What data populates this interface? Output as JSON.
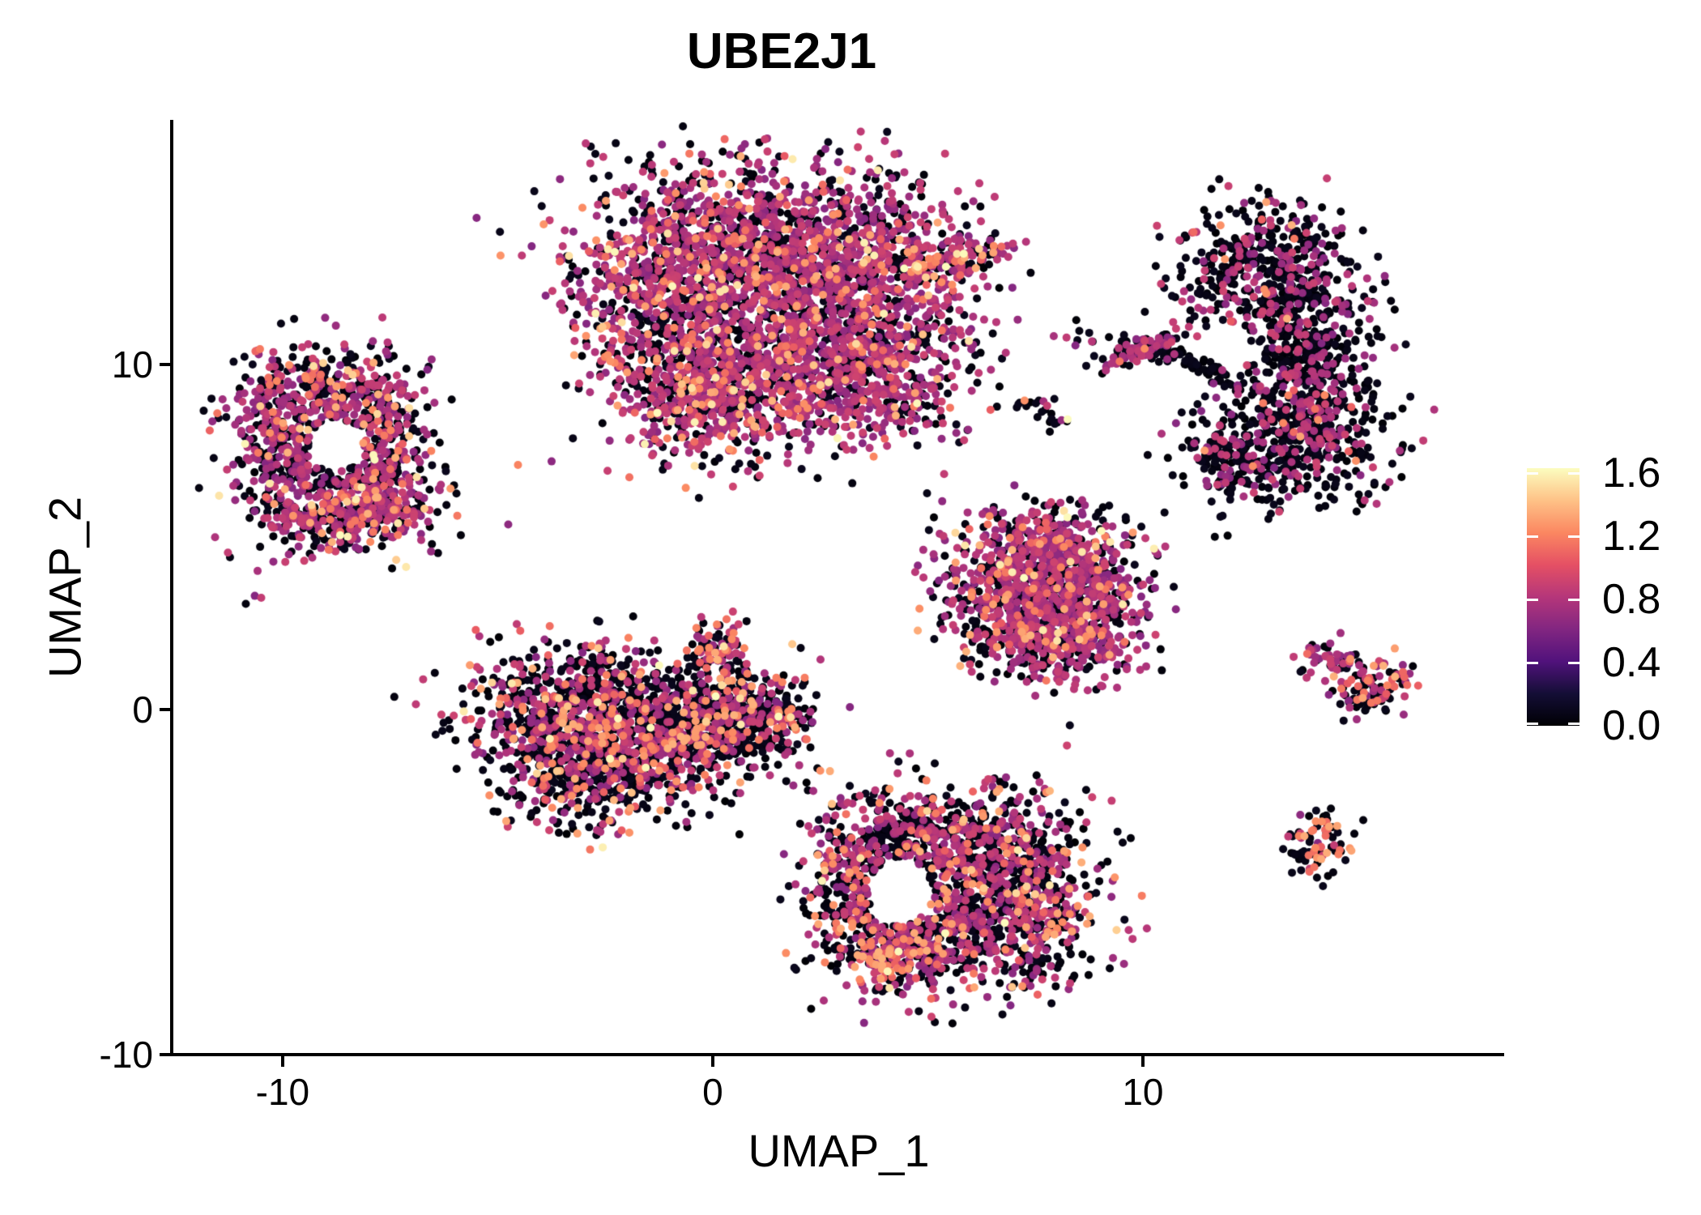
{
  "chart_data": {
    "type": "scatter",
    "title": "UBE2J1",
    "xlabel": "UMAP_1",
    "ylabel": "UMAP_2",
    "grid": false,
    "x_axis": {
      "ticks": [
        -10,
        0,
        10
      ],
      "tick_labels": [
        "-10",
        "0",
        "10"
      ],
      "range": [
        -12.54,
        18.4
      ]
    },
    "y_axis": {
      "ticks": [
        -10,
        0,
        10
      ],
      "tick_labels": [
        "-10",
        "0",
        "10"
      ],
      "range": [
        -10.0,
        17.09
      ]
    },
    "legend": {
      "position": "right",
      "vmin": 0.0,
      "vmax": 1.63,
      "ticks": [
        0.0,
        0.4,
        0.8,
        1.2,
        1.6
      ],
      "tick_labels": [
        "0.0",
        "0.4",
        "0.8",
        "1.2",
        "1.6"
      ],
      "colormap": "magma",
      "colormap_stops": [
        [
          0.0,
          "#000004"
        ],
        [
          0.125,
          "#140e36"
        ],
        [
          0.25,
          "#51127c"
        ],
        [
          0.375,
          "#822681"
        ],
        [
          0.5,
          "#b5367a"
        ],
        [
          0.625,
          "#e55064"
        ],
        [
          0.75,
          "#fb8761"
        ],
        [
          0.875,
          "#fec287"
        ],
        [
          1.0,
          "#fcfdbf"
        ]
      ]
    },
    "point_radius_px": 5,
    "value_bands": {
      "zero": [
        0.0,
        0.1
      ],
      "mid": [
        0.62,
        0.92
      ],
      "high": [
        1.05,
        1.38
      ],
      "peak": [
        1.42,
        1.63
      ]
    },
    "clusters": [
      {
        "name": "top-center-large",
        "weights": {
          "zero": 0.34,
          "mid": 0.555,
          "high": 0.09,
          "peak": 0.015
        },
        "blobs": [
          {
            "x": 0.38,
            "y": 13.52,
            "sx": 1.79,
            "sy": 1.29,
            "n": 950
          },
          {
            "x": 3.2,
            "y": 12.82,
            "sx": 1.51,
            "sy": 1.29,
            "n": 800
          },
          {
            "x": -1.13,
            "y": 11.64,
            "sx": 1.13,
            "sy": 1.41,
            "n": 500
          },
          {
            "x": 1.51,
            "y": 10.0,
            "sx": 1.69,
            "sy": 1.29,
            "n": 850
          },
          {
            "x": 3.95,
            "y": 9.77,
            "sx": 1.13,
            "sy": 1.06,
            "n": 400
          },
          {
            "x": -0.38,
            "y": 8.83,
            "sx": 0.94,
            "sy": 0.82,
            "n": 300
          },
          {
            "x": 5.08,
            "y": 12.82,
            "sx": 0.66,
            "sy": 0.28,
            "n": 90,
            "tilt": 0.35,
            "weights": {
              "zero": 0.3,
              "mid": 0.45,
              "high": 0.2,
              "peak": 0.05
            }
          },
          {
            "x": 6.12,
            "y": 13.17,
            "sx": 0.38,
            "sy": 0.23,
            "n": 50,
            "tilt": 0.35,
            "weights": {
              "zero": 0.3,
              "mid": 0.45,
              "high": 0.2,
              "peak": 0.05
            }
          }
        ]
      },
      {
        "name": "top-right-crescent",
        "weights": {
          "zero": 0.73,
          "mid": 0.25,
          "high": 0.02
        },
        "holes": [
          {
            "x": 11.9,
            "y": 10.3,
            "rx": 0.55,
            "ry": 0.95
          }
        ],
        "blobs": [
          {
            "x": 12.81,
            "y": 12.82,
            "sx": 1.04,
            "sy": 0.94,
            "n": 430
          },
          {
            "x": 13.79,
            "y": 10.23,
            "sx": 0.85,
            "sy": 1.41,
            "n": 480
          },
          {
            "x": 13.41,
            "y": 7.77,
            "sx": 1.04,
            "sy": 0.99,
            "n": 440
          },
          {
            "x": 11.96,
            "y": 7.3,
            "sx": 0.53,
            "sy": 0.59,
            "n": 110
          }
        ]
      },
      {
        "name": "small-streak-right",
        "weights": {
          "zero": 0.3,
          "mid": 0.66,
          "high": 0.04
        },
        "blobs": [
          {
            "x": 10.02,
            "y": 10.47,
            "sx": 0.45,
            "sy": 0.16,
            "n": 85,
            "tilt": 0.45
          },
          {
            "x": 11.11,
            "y": 10.05,
            "sx": 0.75,
            "sy": 0.14,
            "n": 75,
            "tilt": -0.5,
            "weights": {
              "zero": 0.95,
              "mid": 0.05
            }
          }
        ]
      },
      {
        "name": "tiny-island-a",
        "weights": {
          "zero": 0.65,
          "mid": 0.35
        },
        "blobs": [
          {
            "x": 8.53,
            "y": 10.77,
            "sx": 0.22,
            "sy": 0.16,
            "n": 9
          }
        ]
      },
      {
        "name": "tiny-island-b",
        "weights": {
          "zero": 0.82,
          "mid": 0.18
        },
        "blobs": [
          {
            "x": 7.29,
            "y": 8.9,
            "sx": 0.35,
            "sy": 0.16,
            "n": 11
          }
        ]
      },
      {
        "name": "tiny-island-c",
        "weights": {
          "zero": 0.62,
          "mid": 0.23,
          "peak": 0.15
        },
        "blobs": [
          {
            "x": 7.91,
            "y": 8.36,
            "sx": 0.22,
            "sy": 0.18,
            "n": 13
          }
        ]
      },
      {
        "name": "left-ring",
        "weights": {
          "zero": 0.45,
          "mid": 0.44,
          "high": 0.095,
          "peak": 0.015
        },
        "holes": [
          {
            "x": -8.76,
            "y": 7.7,
            "rx": 0.62,
            "ry": 0.72
          }
        ],
        "blobs": [
          {
            "x": -9.13,
            "y": 9.06,
            "sx": 1.13,
            "sy": 0.75,
            "n": 360
          },
          {
            "x": -9.89,
            "y": 7.3,
            "sx": 0.66,
            "sy": 1.13,
            "n": 290
          },
          {
            "x": -8.0,
            "y": 6.01,
            "sx": 0.94,
            "sy": 0.7,
            "n": 300
          },
          {
            "x": -7.62,
            "y": 7.7,
            "sx": 0.5,
            "sy": 0.99,
            "n": 250
          },
          {
            "x": -8.81,
            "y": 5.42,
            "sx": 0.85,
            "sy": 0.47,
            "n": 160
          }
        ]
      },
      {
        "name": "left-lone-dot",
        "weights": {
          "zero": 0.4,
          "mid": 0.6
        },
        "blobs": [
          {
            "x": -10.79,
            "y": 3.12,
            "sx": 0.1,
            "sy": 0.1,
            "n": 3
          }
        ]
      },
      {
        "name": "mid-right-triangle",
        "weights": {
          "zero": 0.36,
          "mid": 0.545,
          "high": 0.08,
          "peak": 0.015
        },
        "blobs": [
          {
            "x": 7.72,
            "y": 4.6,
            "sx": 1.09,
            "sy": 0.7,
            "n": 390
          },
          {
            "x": 7.12,
            "y": 3.15,
            "sx": 0.98,
            "sy": 0.85,
            "n": 390
          },
          {
            "x": 8.57,
            "y": 3.08,
            "sx": 0.85,
            "sy": 0.89,
            "n": 360
          },
          {
            "x": 7.91,
            "y": 1.9,
            "sx": 0.9,
            "sy": 0.56,
            "n": 280
          }
        ]
      },
      {
        "name": "center-left-blob",
        "weights": {
          "zero": 0.61,
          "mid": 0.275,
          "high": 0.105,
          "peak": 0.01
        },
        "blobs": [
          {
            "x": -3.48,
            "y": 0.14,
            "sx": 1.17,
            "sy": 0.89,
            "n": 470
          },
          {
            "x": -1.69,
            "y": -0.56,
            "sx": 1.36,
            "sy": 1.06,
            "n": 620
          },
          {
            "x": -0.09,
            "y": -0.33,
            "sx": 0.9,
            "sy": 0.8,
            "n": 390
          },
          {
            "x": -3.01,
            "y": -1.74,
            "sx": 1.09,
            "sy": 0.8,
            "n": 420
          },
          {
            "x": 1.04,
            "y": -0.14,
            "sx": 0.6,
            "sy": 0.66,
            "n": 180
          },
          {
            "x": 1.66,
            "y": -0.19,
            "sx": 0.26,
            "sy": 0.21,
            "n": 45
          },
          {
            "x": 0.0,
            "y": 1.78,
            "sx": 0.34,
            "sy": 0.4,
            "n": 75,
            "weights": {
              "zero": 0.35,
              "mid": 0.3,
              "high": 0.3,
              "peak": 0.05
            }
          }
        ]
      },
      {
        "name": "bottom-center-blob",
        "weights": {
          "zero": 0.53,
          "mid": 0.37,
          "high": 0.09,
          "peak": 0.01
        },
        "holes": [
          {
            "x": 4.35,
            "y": -5.28,
            "rx": 0.75,
            "ry": 0.95
          }
        ],
        "blobs": [
          {
            "x": 4.52,
            "y": -3.85,
            "sx": 1.09,
            "sy": 0.75,
            "n": 390
          },
          {
            "x": 6.55,
            "y": -4.27,
            "sx": 1.09,
            "sy": 1.06,
            "n": 490
          },
          {
            "x": 7.19,
            "y": -5.96,
            "sx": 0.98,
            "sy": 1.06,
            "n": 440
          },
          {
            "x": 4.71,
            "y": -6.71,
            "sx": 0.98,
            "sy": 0.89,
            "n": 390
          },
          {
            "x": 3.35,
            "y": -5.26,
            "sx": 0.6,
            "sy": 1.13,
            "n": 240
          },
          {
            "x": 3.92,
            "y": -7.14,
            "sx": 0.45,
            "sy": 0.47,
            "n": 100,
            "weights": {
              "zero": 0.33,
              "mid": 0.27,
              "high": 0.4
            }
          }
        ]
      },
      {
        "name": "right-wedge",
        "weights": {
          "zero": 0.3,
          "mid": 0.62,
          "high": 0.08
        },
        "blobs": [
          {
            "x": 14.46,
            "y": 1.27,
            "sx": 0.38,
            "sy": 0.26,
            "n": 50,
            "tilt": -0.35
          },
          {
            "x": 15.35,
            "y": 0.89,
            "sx": 0.42,
            "sy": 0.38,
            "n": 70,
            "weights": {
              "zero": 0.28,
              "mid": 0.34,
              "high": 0.38
            }
          },
          {
            "x": 15.22,
            "y": 0.33,
            "sx": 0.3,
            "sy": 0.28,
            "n": 40,
            "weights": {
              "zero": 0.88,
              "mid": 0.12
            }
          }
        ]
      },
      {
        "name": "bottom-right-dot",
        "weights": {
          "zero": 0.58,
          "mid": 0.12,
          "high": 0.3
        },
        "blobs": [
          {
            "x": 14.09,
            "y": -3.85,
            "sx": 0.42,
            "sy": 0.49,
            "n": 85
          }
        ]
      }
    ]
  }
}
